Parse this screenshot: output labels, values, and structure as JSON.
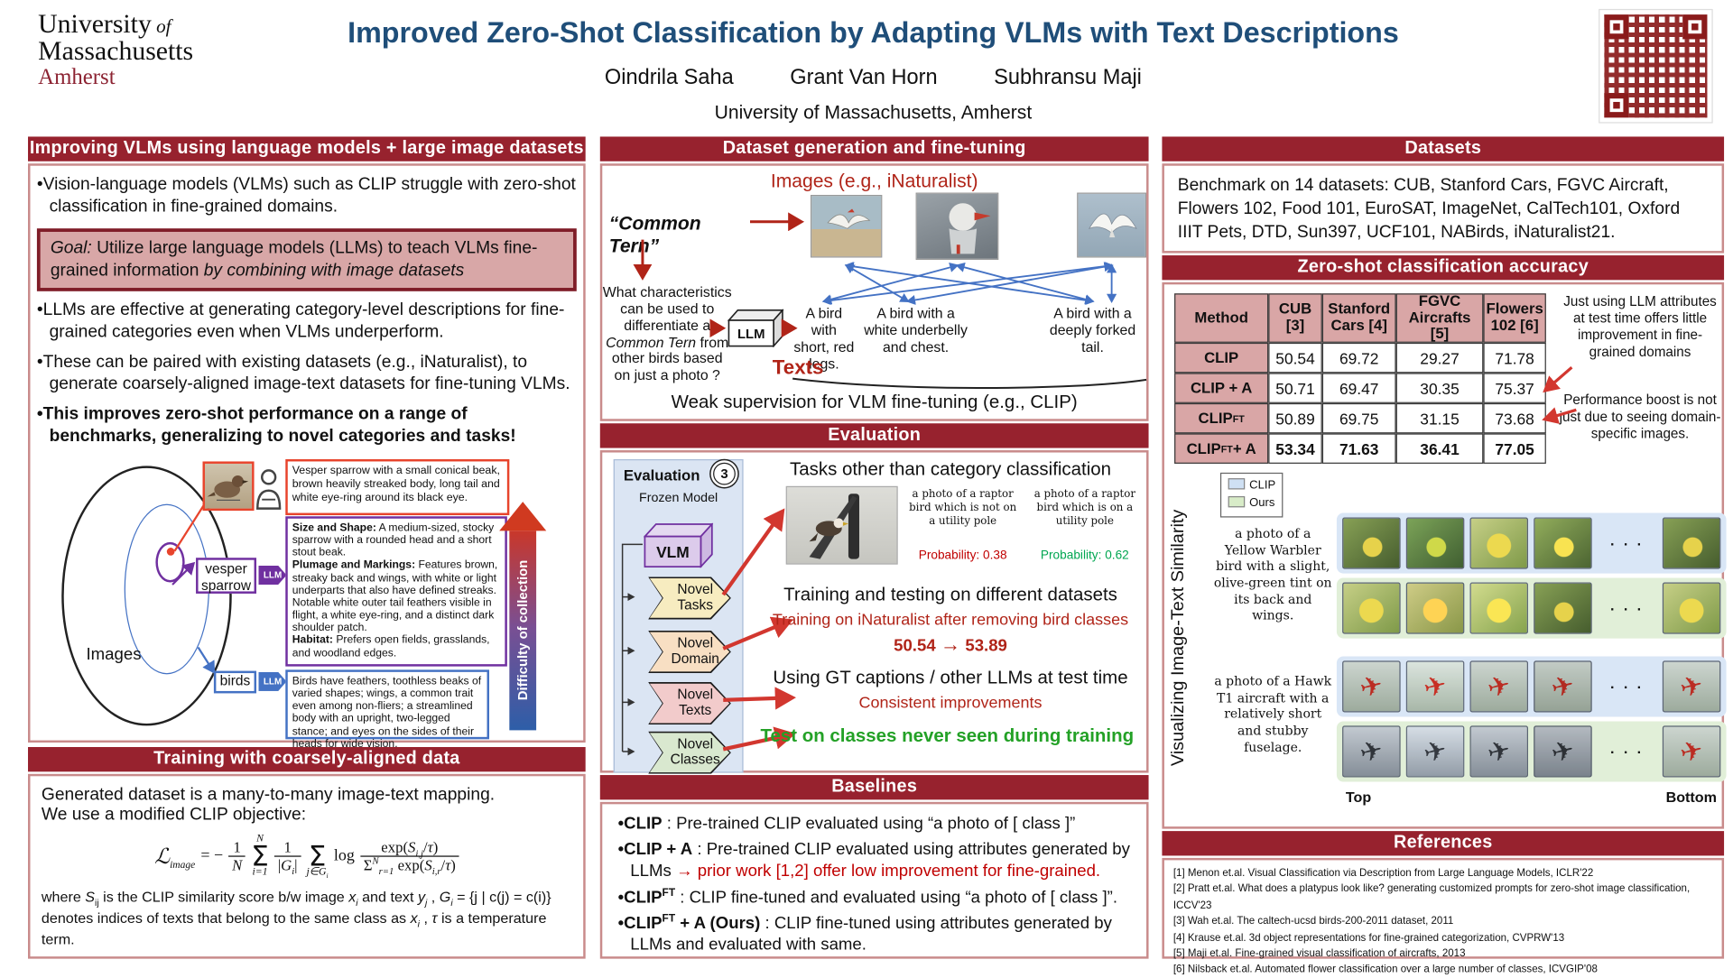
{
  "icons": {
    "plane": "✈",
    "dots": "· · ·"
  },
  "header": {
    "logo1": "University",
    "logo1b": " of",
    "logo2": "Massachusetts",
    "logo3": "Amherst",
    "title": "Improved Zero-Shot Classification by Adapting VLMs with Text Descriptions",
    "authors": [
      "Oindrila Saha",
      "Grant Van Horn",
      "Subhransu Maji"
    ],
    "affiliation": "University of Massachusetts, Amherst"
  },
  "left": {
    "header": "Improving VLMs using language models + large image datasets",
    "b1": "•Vision-language models (VLMs) such as CLIP struggle with zero-shot classification in fine-grained domains.",
    "goal": [
      {
        "t": "Goal:",
        "i": 1
      },
      {
        "t": "  Utilize large language models (LLMs) to teach VLMs fine-grained information "
      },
      {
        "t": "by combining with image datasets",
        "i": 1
      }
    ],
    "b2": "•LLMs are effective at generating category-level descriptions for fine-grained categories even when VLMs underperform.",
    "b3": "•These can be paired with existing datasets (e.g., iNaturalist), to generate coarsely-aligned image-text datasets for fine-tuning VLMs.",
    "b4": "•This improves zero-shot performance on a range of benchmarks, generalizing to novel categories and tasks!",
    "diagram": {
      "images_label": "Images",
      "vesper_label": "vesper sparrow",
      "birds_label": "birds",
      "llm": "LLM",
      "difficulty": "Difficulty of collection",
      "human_box": "Vesper sparrow with a small conical beak, brown heavily streaked body, long tail and white eye-ring around its black eye.",
      "llm_box": [
        {
          "t": "Size and Shape:",
          "b": 1
        },
        {
          "t": " A medium-sized, stocky sparrow with a rounded head and a short stout beak."
        },
        {
          "br": 1
        },
        {
          "t": "Plumage and Markings:",
          "b": 1
        },
        {
          "t": " Features brown, streaky back and wings, with white or light underparts that also have defined streaks. Notable white outer tail feathers visible in flight, a white eye-ring, and a distinct dark shoulder patch."
        },
        {
          "br": 1
        },
        {
          "t": "Habitat:",
          "b": 1
        },
        {
          "t": " Prefers open fields, grasslands, and woodland edges."
        }
      ],
      "birds_box": "Birds have feathers, toothless beaks of varied shapes; wings, a common trait even among non-fliers; a streamlined body with an upright, two-legged stance; and eyes on the sides of their heads for wide vision."
    },
    "training": {
      "header": "Training with coarsely-aligned data",
      "intro1": "Generated dataset is a many-to-many image-text mapping.",
      "intro2": "We use a modified CLIP objective:",
      "formula": {
        "L": "ℒ",
        "L_sub": "image",
        "eq": "= −",
        "f1n": "1",
        "f1d": "N",
        "s1t": "N",
        "s1": "Σ",
        "s1b": "i=1",
        "f2n": "1",
        "f2d": [
          {
            "t": "|"
          },
          {
            "t": "G",
            "i": 1
          },
          {
            "t": "i",
            "sub": 1,
            "i": 1
          },
          {
            "t": "|"
          }
        ],
        "s2": "Σ",
        "s2b": [
          {
            "t": "j",
            "i": 1
          },
          {
            "t": "∈"
          },
          {
            "t": "G",
            "i": 1
          },
          {
            "t": "i",
            "sub": 1,
            "i": 1
          }
        ],
        "log": "log",
        "f3n": [
          {
            "t": "exp("
          },
          {
            "t": "S",
            "i": 1
          },
          {
            "t": "i,j",
            "sub": 1,
            "i": 1
          },
          {
            "t": "/"
          },
          {
            "t": "τ",
            "i": 1
          },
          {
            "t": ")"
          }
        ],
        "f3d": [
          {
            "t": "Σ"
          },
          {
            "t": "N",
            "sup": 1,
            "i": 1
          },
          {
            "t": "r=1",
            "sub": 1,
            "i": 1
          },
          {
            "t": " exp("
          },
          {
            "t": "S",
            "i": 1
          },
          {
            "t": "i,r",
            "sub": 1,
            "i": 1
          },
          {
            "t": "/"
          },
          {
            "t": "τ",
            "i": 1
          },
          {
            "t": ")"
          }
        ]
      },
      "where1": [
        {
          "t": "where "
        },
        {
          "t": "S",
          "i": 1
        },
        {
          "t": "ij",
          "sub": 1
        },
        {
          "t": " is the CLIP similarity score b/w image "
        },
        {
          "t": "x",
          "i": 1
        },
        {
          "t": "i",
          "sub": 1,
          "i": 1
        },
        {
          "t": " and text "
        },
        {
          "t": "y",
          "i": 1
        },
        {
          "t": "j",
          "sub": 1,
          "i": 1
        },
        {
          "t": " , "
        },
        {
          "t": "G",
          "i": 1
        },
        {
          "t": "i",
          "sub": 1,
          "i": 1
        },
        {
          "t": " = {j | c(j) = c(i)}"
        }
      ],
      "where2": [
        {
          "t": "denotes indices of texts that belong to the same class as "
        },
        {
          "t": "x",
          "i": 1
        },
        {
          "t": "i",
          "sub": 1,
          "i": 1
        },
        {
          "t": " , "
        },
        {
          "t": "τ",
          "i": 1
        },
        {
          "t": " is a temperature term."
        }
      ]
    }
  },
  "middle": {
    "gen": {
      "header": "Dataset generation and fine-tuning",
      "images_label": "Images (e.g., iNaturalist)",
      "common_tern": "“Common Tern”",
      "question": [
        {
          "t": "What characteristics can be used to differentiate a "
        },
        {
          "t": "Common Tern",
          "i": 1
        },
        {
          "t": " from other birds based on just a photo ?"
        }
      ],
      "llm": "LLM",
      "t1": "A bird with short, red legs.",
      "t2": "A bird with a white underbelly and chest.",
      "t3": "A bird with a deeply forked tail.",
      "texts_label": "Texts",
      "weak": "Weak supervision for VLM fine-tuning (e.g., CLIP)"
    },
    "eval": {
      "header": "Evaluation",
      "panel_title": "Evaluation",
      "badge": "3",
      "frozen": "Frozen Model",
      "vlm": "VLM",
      "chevrons": [
        "Novel Tasks",
        "Novel Domain",
        "Novel Texts",
        "Novel Classes"
      ],
      "t1": "Tasks other than category classification",
      "cap_left": "a photo of a raptor bird which is not on a utility pole",
      "cap_right": "a photo of a raptor bird which is on a utility pole",
      "p_left": "Probability: 0.38",
      "p_right": "Probability: 0.62",
      "t2": "Training and testing on different datasets",
      "t2_red": "Training on iNaturalist after removing bird classes",
      "n1": "50.54",
      "arr": "→",
      "n2": "53.89",
      "t3": "Using GT captions / other LLMs at test time",
      "t3_red": "Consistent improvements",
      "t4": "Test on classes never seen during training"
    },
    "baselines": {
      "header": "Baselines",
      "items": [
        [
          {
            "t": "•",
            "b": 1
          },
          {
            "t": "CLIP",
            "b": 1
          },
          {
            "t": " : Pre-trained CLIP evaluated using “a photo of [ class ]”"
          }
        ],
        [
          {
            "t": "•",
            "b": 1
          },
          {
            "t": "CLIP + A",
            "b": 1
          },
          {
            "t": " : Pre-trained CLIP evaluated using attributes generated by LLMs "
          },
          {
            "t": "→ ",
            "r": 1,
            "b": 1
          },
          {
            "t": "prior work [1,2] offer low improvement for fine-grained.",
            "r": 1
          }
        ],
        [
          {
            "t": "•",
            "b": 1
          },
          {
            "t": "CLIP",
            "b": 1
          },
          {
            "t": "FT",
            "b": 1,
            "sup": 1
          },
          {
            "t": " : CLIP fine-tuned and evaluated using “a photo of [ class ]”."
          }
        ],
        [
          {
            "t": "•",
            "b": 1
          },
          {
            "t": "CLIP",
            "b": 1
          },
          {
            "t": "FT",
            "b": 1,
            "sup": 1
          },
          {
            "t": " + A (Ours)",
            "b": 1
          },
          {
            "t": " : CLIP fine-tuned using attributes generated by LLMs and evaluated with same."
          }
        ]
      ]
    }
  },
  "right": {
    "datasets": {
      "header": "Datasets",
      "text": "Benchmark on 14 datasets: CUB, Stanford Cars, FGVC Aircraft, Flowers 102, Food 101, EuroSAT, ImageNet, CalTech101, Oxford IIIT Pets, DTD, Sun397, UCF101, NABirds, iNaturalist21."
    },
    "accuracy": {
      "header": "Zero-shot classification accuracy",
      "table": {
        "headers": [
          "Method",
          "CUB [3]",
          "Stanford Cars [4]",
          "FGVC Aircrafts [5]",
          "Flowers 102 [6]"
        ],
        "rows": [
          {
            "method": [
              {
                "t": "CLIP",
                "b": 1
              }
            ],
            "values": [
              "50.54",
              "69.72",
              "29.27",
              "71.78"
            ]
          },
          {
            "method": [
              {
                "t": "CLIP + A",
                "b": 1
              }
            ],
            "values": [
              "50.71",
              "69.47",
              "30.35",
              "75.37"
            ]
          },
          {
            "method": [
              {
                "t": "CLIP",
                "b": 1
              },
              {
                "t": "FT",
                "b": 1,
                "sup": 1
              }
            ],
            "values": [
              "50.89",
              "69.75",
              "31.15",
              "73.68"
            ]
          },
          {
            "method": [
              {
                "t": "CLIP",
                "b": 1
              },
              {
                "t": "FT",
                "b": 1,
                "sup": 1
              },
              {
                "t": " + A",
                "b": 1
              }
            ],
            "values": [
              "53.34",
              "71.63",
              "36.41",
              "77.05"
            ]
          }
        ]
      },
      "ann1": "Just using LLM attributes at test time offers little improvement in fine-grained domains",
      "ann2": "Performance boost is not just due to seeing domain-specific images."
    },
    "vis": {
      "rot_label": "Visualizing Image-Text Similarity",
      "legend": [
        "CLIP",
        "Ours"
      ],
      "caption1": "a photo of a Yellow Warbler bird with a slight, olive-green tint on its back and wings.",
      "caption2": "a photo of a Hawk T1 aircraft with a relatively short and stubby fuselage.",
      "top_label": "Top",
      "bottom_label": "Bottom"
    },
    "references": {
      "header": "References",
      "items": [
        "[1] Menon et.al. Visual Classification via Description from Large Language Models, ICLR'22",
        "[2] Pratt et.al. What does a platypus look like? generating customized prompts for zero-shot image classification, ICCV'23",
        "[3] Wah et.al.  The caltech-ucsd birds-200-2011 dataset, 2011",
        "[4] Krause et.al. 3d object representations for fine-grained categorization, CVPRW'13",
        "[5] Maji et.al. Fine-grained visual classification of aircrafts, 2013",
        "[6] Nilsback et.al. Automated flower classification over a large number of classes, ICVGIP'08"
      ]
    }
  }
}
